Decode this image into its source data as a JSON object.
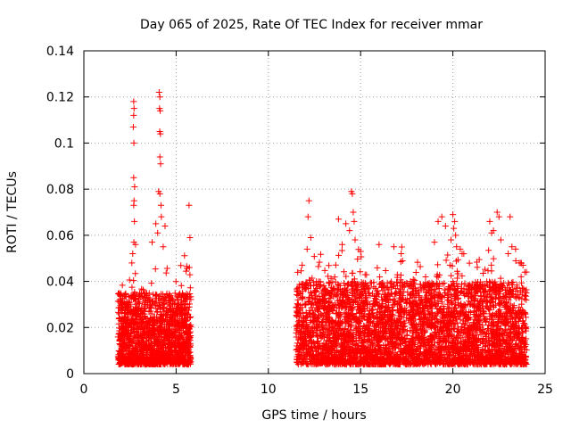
{
  "chart_data": {
    "type": "scatter",
    "title": "Day 065 of 2025, Rate Of TEC Index for receiver mmar",
    "xlabel": "GPS time / hours",
    "ylabel": "ROTI / TECUs",
    "xlim": [
      0,
      25
    ],
    "ylim": [
      0,
      0.14
    ],
    "xticks": [
      0,
      5,
      10,
      15,
      20,
      25
    ],
    "yticks": [
      0,
      0.02,
      0.04,
      0.06,
      0.08,
      0.1,
      0.12,
      0.14
    ],
    "xtick_labels": [
      "0",
      "5",
      "10",
      "15",
      "20",
      "25"
    ],
    "ytick_labels": [
      "0",
      "0.02",
      "0.04",
      "0.06",
      "0.08",
      "0.1",
      "0.12",
      "0.14"
    ],
    "grid": true,
    "marker": "+",
    "series": [
      {
        "name": "ROTI",
        "color": "#ff0000",
        "segments": [
          {
            "x_start": 1.85,
            "x_end": 5.8,
            "base_min": 0.004,
            "base_max": 0.035,
            "count": 1600
          },
          {
            "x_start": 11.5,
            "x_end": 24.0,
            "base_min": 0.004,
            "base_max": 0.04,
            "count": 4200
          }
        ],
        "highlights": [
          {
            "x": 2.7,
            "y": 0.118
          },
          {
            "x": 2.72,
            "y": 0.115
          },
          {
            "x": 2.7,
            "y": 0.112
          },
          {
            "x": 2.68,
            "y": 0.107
          },
          {
            "x": 2.71,
            "y": 0.1
          },
          {
            "x": 2.7,
            "y": 0.085
          },
          {
            "x": 2.75,
            "y": 0.081
          },
          {
            "x": 2.72,
            "y": 0.075
          },
          {
            "x": 2.7,
            "y": 0.073
          },
          {
            "x": 2.74,
            "y": 0.066
          },
          {
            "x": 2.71,
            "y": 0.057
          },
          {
            "x": 2.8,
            "y": 0.056
          },
          {
            "x": 2.65,
            "y": 0.052
          },
          {
            "x": 2.6,
            "y": 0.048
          },
          {
            "x": 4.08,
            "y": 0.122
          },
          {
            "x": 4.12,
            "y": 0.12
          },
          {
            "x": 4.1,
            "y": 0.115
          },
          {
            "x": 4.14,
            "y": 0.114
          },
          {
            "x": 4.11,
            "y": 0.105
          },
          {
            "x": 4.15,
            "y": 0.104
          },
          {
            "x": 4.12,
            "y": 0.094
          },
          {
            "x": 4.16,
            "y": 0.091
          },
          {
            "x": 4.05,
            "y": 0.079
          },
          {
            "x": 4.12,
            "y": 0.078
          },
          {
            "x": 4.18,
            "y": 0.073
          },
          {
            "x": 3.9,
            "y": 0.065
          },
          {
            "x": 4.2,
            "y": 0.068
          },
          {
            "x": 4.0,
            "y": 0.061
          },
          {
            "x": 4.4,
            "y": 0.064
          },
          {
            "x": 3.7,
            "y": 0.057
          },
          {
            "x": 4.3,
            "y": 0.055
          },
          {
            "x": 5.7,
            "y": 0.073
          },
          {
            "x": 5.75,
            "y": 0.059
          },
          {
            "x": 5.72,
            "y": 0.046
          },
          {
            "x": 12.2,
            "y": 0.075
          },
          {
            "x": 12.15,
            "y": 0.068
          },
          {
            "x": 12.3,
            "y": 0.059
          },
          {
            "x": 12.1,
            "y": 0.054
          },
          {
            "x": 13.8,
            "y": 0.067
          },
          {
            "x": 14.2,
            "y": 0.065
          },
          {
            "x": 14.5,
            "y": 0.079
          },
          {
            "x": 14.55,
            "y": 0.078
          },
          {
            "x": 14.6,
            "y": 0.07
          },
          {
            "x": 14.65,
            "y": 0.066
          },
          {
            "x": 14.4,
            "y": 0.062
          },
          {
            "x": 14.7,
            "y": 0.058
          },
          {
            "x": 14.0,
            "y": 0.056
          },
          {
            "x": 15.0,
            "y": 0.053
          },
          {
            "x": 16.0,
            "y": 0.056
          },
          {
            "x": 16.8,
            "y": 0.055
          },
          {
            "x": 17.2,
            "y": 0.052
          },
          {
            "x": 19.4,
            "y": 0.068
          },
          {
            "x": 19.2,
            "y": 0.066
          },
          {
            "x": 19.6,
            "y": 0.064
          },
          {
            "x": 20.0,
            "y": 0.069
          },
          {
            "x": 20.1,
            "y": 0.066
          },
          {
            "x": 20.05,
            "y": 0.063
          },
          {
            "x": 20.15,
            "y": 0.06
          },
          {
            "x": 19.9,
            "y": 0.058
          },
          {
            "x": 20.2,
            "y": 0.055
          },
          {
            "x": 20.5,
            "y": 0.052
          },
          {
            "x": 19.0,
            "y": 0.057
          },
          {
            "x": 22.1,
            "y": 0.061
          },
          {
            "x": 22.2,
            "y": 0.062
          },
          {
            "x": 22.4,
            "y": 0.07
          },
          {
            "x": 22.5,
            "y": 0.068
          },
          {
            "x": 22.0,
            "y": 0.066
          },
          {
            "x": 22.6,
            "y": 0.058
          },
          {
            "x": 23.1,
            "y": 0.068
          },
          {
            "x": 23.2,
            "y": 0.055
          },
          {
            "x": 23.4,
            "y": 0.054
          },
          {
            "x": 23.0,
            "y": 0.052
          },
          {
            "x": 23.6,
            "y": 0.048
          },
          {
            "x": 23.8,
            "y": 0.047
          },
          {
            "x": 23.9,
            "y": 0.044
          },
          {
            "x": 23.7,
            "y": 0.042
          }
        ]
      }
    ]
  }
}
